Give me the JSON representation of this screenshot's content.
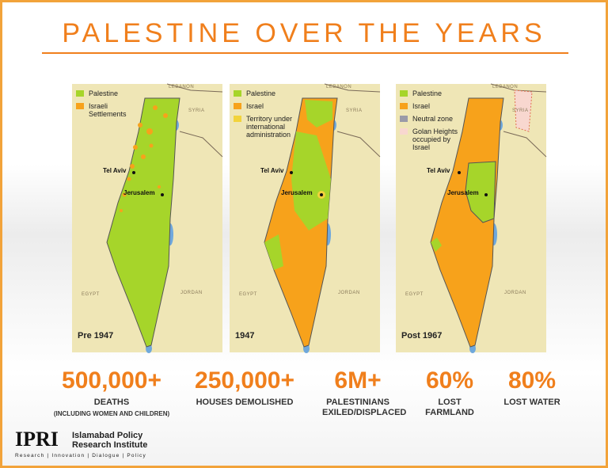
{
  "title": "PALESTINE OVER THE YEARS",
  "maps": [
    {
      "period": "Pre 1947",
      "legend": [
        "Palestine",
        "Israeli Settlements"
      ],
      "places": {
        "lebanon": "LEBANON",
        "syria": "SYRIA",
        "tel_aviv": "Tel Aviv",
        "jerusalem": "Jerusalem",
        "egypt": "EGYPT",
        "jordan": "JORDAN"
      }
    },
    {
      "period": "1947",
      "legend": [
        "Palestine",
        "Israel",
        "Territory under international administration"
      ],
      "places": {
        "lebanon": "LEBANON",
        "syria": "SYRIA",
        "tel_aviv": "Tel Aviv",
        "jerusalem": "Jerusalem",
        "egypt": "EGYPT",
        "jordan": "JORDAN"
      }
    },
    {
      "period": "Post 1967",
      "legend": [
        "Palestine",
        "Israel",
        "Neutral zone",
        "Golan Heights occupied by Israel"
      ],
      "places": {
        "lebanon": "LEBANON",
        "syria": "SYRIA",
        "tel_aviv": "Tel Aviv",
        "jerusalem": "Jerusalem",
        "egypt": "EGYPT",
        "jordan": "JORDAN"
      }
    }
  ],
  "stats": [
    {
      "value": "500,000+",
      "label": "DEATHS",
      "note": "(INCLUDING WOMEN AND CHILDREN)"
    },
    {
      "value": "250,000+",
      "label": "HOUSES DEMOLISHED"
    },
    {
      "value": "6M+",
      "label": "PALESTINIANS EXILED/DISPLACED"
    },
    {
      "value": "60%",
      "label": "LOST FARMLAND"
    },
    {
      "value": "80%",
      "label": "LOST WATER"
    }
  ],
  "footer": {
    "logo": "IPRI",
    "name_lines": [
      "Islamabad Policy",
      "Research Institute"
    ],
    "tagline": "Research | Innovation | Dialogue | Policy"
  }
}
